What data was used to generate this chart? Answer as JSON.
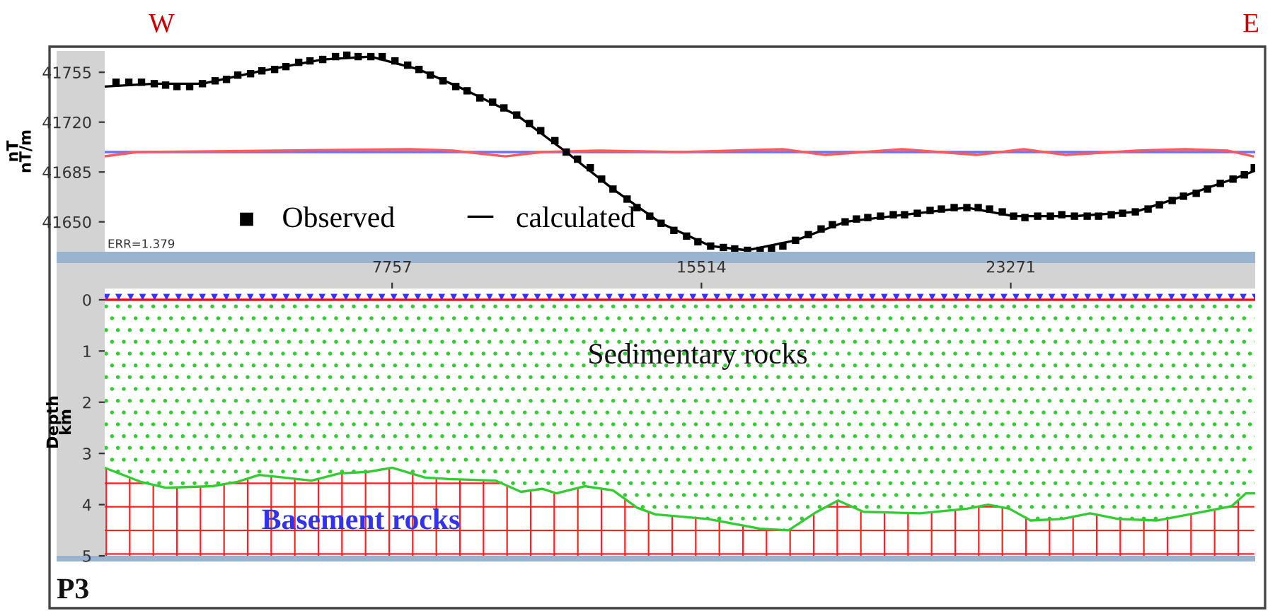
{
  "chart_data": [
    {
      "type": "line",
      "ylabel": "nT\nnT/m",
      "annotations": [
        "W",
        "E",
        "ERR=1.379"
      ],
      "xlim": [
        550,
        29400
      ],
      "ylim": [
        41629,
        41770
      ],
      "yticks": [
        41650,
        41685,
        41720,
        41755
      ],
      "tick_labels": "y",
      "grid": false,
      "legend": "bottom left",
      "series": [
        {
          "color": "#7070ff",
          "x": [
            550,
            29400
          ],
          "values": [
            41699,
            41699
          ]
        },
        {
          "color": "#ff5a5a",
          "x": [
            550,
            1367,
            8218,
            9283,
            10597,
            11520,
            12940,
            15000,
            17555,
            18620,
            20537,
            22419,
            23590,
            24655,
            26430,
            27637,
            28702,
            29341
          ],
          "values": [
            41696,
            41699,
            41701,
            41700,
            41696,
            41699,
            41700,
            41699,
            41701,
            41697,
            41701,
            41697,
            41701,
            41697,
            41700,
            41701,
            41700,
            41696
          ]
        },
        {
          "name": "calculated",
          "color": "#000000",
          "x": [
            550,
            1793,
            3000,
            4491,
            6017,
            7224,
            8431,
            9638,
            10881,
            12123,
            13295,
            14502,
            15745,
            16668,
            17875,
            19117,
            20608,
            22170,
            23342,
            24868,
            26395,
            27602,
            28844,
            29400
          ],
          "values": [
            41745,
            41747,
            41747,
            41756,
            41764,
            41766,
            41757,
            41742,
            41725,
            41699,
            41673,
            41649,
            41633,
            41630,
            41637,
            41650,
            41655,
            41660,
            41654,
            41654,
            41657,
            41668,
            41680,
            41686
          ]
        },
        {
          "name": "Observed",
          "type": "scatter",
          "marker": "square",
          "color": "#000000",
          "x": [
            834,
            1154,
            1473,
            1793,
            2077,
            2361,
            2680,
            3000,
            3319,
            3603,
            3887,
            4207,
            4491,
            4810,
            5094,
            5414,
            5698,
            6017,
            6337,
            6621,
            6905,
            7224,
            7508,
            7828,
            8147,
            8431,
            8715,
            9035,
            9354,
            9638,
            9958,
            10277,
            10561,
            10881,
            11200,
            11484,
            11839,
            12123,
            12407,
            12727,
            13011,
            13295,
            13650,
            13898,
            14218,
            14502,
            14822,
            15141,
            15425,
            15745,
            16064,
            16348,
            16668,
            16987,
            17271,
            17555,
            17875,
            18194,
            18514,
            18798,
            19117,
            19401,
            19685,
            20005,
            20324,
            20608,
            20928,
            21247,
            21531,
            21851,
            22170,
            22454,
            22738,
            23058,
            23342,
            23626,
            23945,
            24265,
            24549,
            24868,
            25188,
            25472,
            25791,
            26075,
            26395,
            26714,
            26998,
            27318,
            27602,
            27921,
            28205,
            28525,
            28844,
            29128,
            29377
          ],
          "values": [
            41748,
            41748,
            41748,
            41747,
            41746,
            41745,
            41745,
            41747,
            41749,
            41750,
            41753,
            41754,
            41756,
            41757,
            41759,
            41762,
            41763,
            41764,
            41766,
            41767,
            41766,
            41766,
            41766,
            41763,
            41760,
            41757,
            41753,
            41749,
            41745,
            41742,
            41737,
            41734,
            41730,
            41725,
            41719,
            41714,
            41707,
            41699,
            41694,
            41688,
            41680,
            41673,
            41666,
            41660,
            41654,
            41649,
            41644,
            41640,
            41636,
            41633,
            41632,
            41631,
            41630,
            41630,
            41631,
            41633,
            41637,
            41641,
            41645,
            41648,
            41650,
            41652,
            41653,
            41654,
            41655,
            41655,
            41656,
            41658,
            41659,
            41660,
            41660,
            41660,
            41659,
            41657,
            41654,
            41653,
            41654,
            41654,
            41655,
            41654,
            41654,
            41654,
            41655,
            41656,
            41657,
            41659,
            41662,
            41665,
            41668,
            41670,
            41673,
            41677,
            41680,
            41683,
            41688
          ]
        }
      ]
    },
    {
      "type": "area",
      "stacked": true,
      "ylabel": "Depth\nkm",
      "annotations": [
        "Sedimentary rocks",
        "Basement rocks",
        "P3"
      ],
      "xlim": [
        550,
        29400
      ],
      "xticks": [
        7757,
        15514,
        23271
      ],
      "ylim": [
        5,
        -0.22
      ],
      "yticks": [
        0,
        1,
        2,
        3,
        4,
        5
      ],
      "grid": false,
      "x": [
        550,
        1473,
        2077,
        3248,
        3852,
        4420,
        5023,
        5733,
        6443,
        7153,
        7757,
        8573,
        9177,
        10348,
        10987,
        11520,
        11875,
        12585,
        13295,
        13898,
        14360,
        15674,
        16987,
        17697,
        18407,
        18940,
        19578,
        20998,
        22170,
        22703,
        23235,
        23768,
        24549,
        25259,
        25969,
        26927,
        28099,
        28809,
        29164,
        29377
      ],
      "ref_lines": [
        {
          "axis": "y",
          "value": 0,
          "color": "#ff0000"
        }
      ],
      "series": [
        {
          "color": "#33cc33",
          "values": [
            3.28,
            3.56,
            3.67,
            3.64,
            3.56,
            3.42,
            3.47,
            3.53,
            3.39,
            3.36,
            3.28,
            3.47,
            3.5,
            3.53,
            3.75,
            3.69,
            3.78,
            3.64,
            3.72,
            4.06,
            4.19,
            4.28,
            4.47,
            4.5,
            4.14,
            3.92,
            4.14,
            4.17,
            4.08,
            4.0,
            4.08,
            4.31,
            4.28,
            4.17,
            4.28,
            4.31,
            4.14,
            4.03,
            3.78,
            3.78
          ]
        },
        {
          "color": "#ff2020",
          "values": [
            1.72,
            1.44,
            1.33,
            1.36,
            1.44,
            1.58,
            1.53,
            1.47,
            1.61,
            1.64,
            1.72,
            1.53,
            1.5,
            1.47,
            1.25,
            1.31,
            1.22,
            1.36,
            1.28,
            0.94,
            0.81,
            0.72,
            0.53,
            0.5,
            0.86,
            1.08,
            0.86,
            0.83,
            0.92,
            1.0,
            0.92,
            0.69,
            0.72,
            0.83,
            0.72,
            0.69,
            0.86,
            0.97,
            1.22,
            1.22
          ]
        },
        {
          "type": "scatter",
          "marker": "triangle",
          "color": "#3333ff",
          "x": [
            600,
            900,
            1200,
            1500,
            1800,
            2100,
            2400,
            2700,
            3000,
            3300,
            3600,
            3900,
            4200,
            4500,
            4800,
            5100,
            5400,
            5700,
            6000,
            6300,
            6600,
            6900,
            7200,
            7500,
            7800,
            8100,
            8400,
            8700,
            9000,
            9300,
            9600,
            9900,
            10200,
            10500,
            10800,
            11100,
            11400,
            11700,
            12000,
            12300,
            12600,
            12900,
            13200,
            13500,
            13800,
            14100,
            14400,
            14700,
            15000,
            15300,
            15600,
            15900,
            16200,
            16500,
            16800,
            17100,
            17400,
            17700,
            18000,
            18300,
            18600,
            18900,
            19200,
            19500,
            19800,
            20100,
            20400,
            20700,
            21000,
            21300,
            21600,
            21900,
            22200,
            22500,
            22800,
            23100,
            23400,
            23700,
            24000,
            24300,
            24600,
            24900,
            25200,
            25500,
            25800,
            26100,
            26400,
            26700,
            27000,
            27300,
            27600,
            27900,
            28200,
            28500,
            28800,
            29100,
            29400
          ],
          "values": [
            -0.05,
            -0.05,
            -0.05,
            -0.05,
            -0.05,
            -0.05,
            -0.05,
            -0.05,
            -0.05,
            -0.05,
            -0.05,
            -0.05,
            -0.05,
            -0.05,
            -0.05,
            -0.05,
            -0.05,
            -0.05,
            -0.05,
            -0.05,
            -0.05,
            -0.05,
            -0.05,
            -0.05,
            -0.05,
            -0.05,
            -0.05,
            -0.05,
            -0.05,
            -0.05,
            -0.05,
            -0.05,
            -0.05,
            -0.05,
            -0.05,
            -0.05,
            -0.05,
            -0.05,
            -0.05,
            -0.05,
            -0.05,
            -0.05,
            -0.05,
            -0.05,
            -0.05,
            -0.05,
            -0.05,
            -0.05,
            -0.05,
            -0.05,
            -0.05,
            -0.05,
            -0.05,
            -0.05,
            -0.05,
            -0.05,
            -0.05,
            -0.05,
            -0.05,
            -0.05,
            -0.05,
            -0.05,
            -0.05,
            -0.05,
            -0.05,
            -0.05,
            -0.05,
            -0.05,
            -0.05,
            -0.05,
            -0.05,
            -0.05,
            -0.05,
            -0.05,
            -0.05,
            -0.05,
            -0.05,
            -0.05,
            -0.05,
            -0.05,
            -0.05,
            -0.05,
            -0.05,
            -0.05,
            -0.05,
            -0.05,
            -0.05,
            -0.05,
            -0.05,
            -0.05,
            -0.05,
            -0.05,
            -0.05,
            -0.05,
            -0.05,
            -0.05,
            -0.05
          ]
        }
      ]
    }
  ]
}
